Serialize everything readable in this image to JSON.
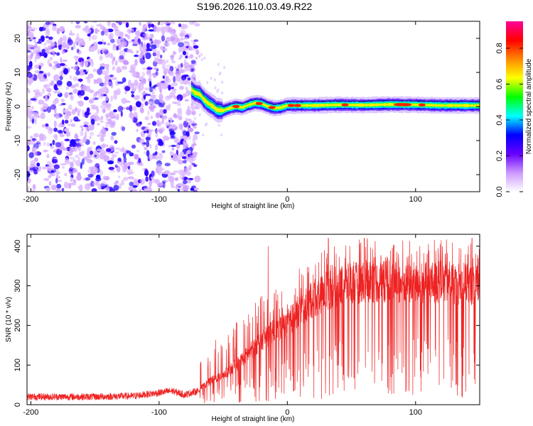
{
  "title": "S196.2026.110.03.49.R22",
  "chart_data": [
    {
      "type": "heatmap",
      "name": "spectrogram",
      "xlabel": "Height of straight line (km)",
      "ylabel": "Frequency (Hz)",
      "xlim": [
        -203,
        150
      ],
      "ylim": [
        -25,
        25
      ],
      "xticks": [
        -200,
        -100,
        0,
        100
      ],
      "yticks": [
        -20,
        -10,
        0,
        10,
        20
      ],
      "colorbar": {
        "label": "Normalized spectral amplitude",
        "range": [
          0,
          0.95
        ],
        "ticks": [
          0.0,
          0.2,
          0.4,
          0.6,
          0.8
        ],
        "tick_labels": [
          "0.0",
          "0.2",
          "0.4",
          "0.6",
          "0.8"
        ],
        "colormap": [
          "#ffffff",
          "#cc99ff",
          "#6600ff",
          "#0000ff",
          "#00ffff",
          "#00ff00",
          "#ffff00",
          "#ff8800",
          "#ff0000",
          "#ff0099"
        ]
      },
      "noise_region_x": [
        -203,
        -73
      ],
      "trace": [
        {
          "x": -75,
          "y": 5.0
        },
        {
          "x": -72,
          "y": 4.0
        },
        {
          "x": -68,
          "y": 3.5
        },
        {
          "x": -65,
          "y": 2.0
        },
        {
          "x": -62,
          "y": 1.0
        },
        {
          "x": -58,
          "y": 0.0
        },
        {
          "x": -55,
          "y": -1.0
        },
        {
          "x": -50,
          "y": -1.2
        },
        {
          "x": -45,
          "y": -0.5
        },
        {
          "x": -40,
          "y": 0.0
        },
        {
          "x": -35,
          "y": -0.3
        },
        {
          "x": -30,
          "y": 0.5
        },
        {
          "x": -25,
          "y": 1.0
        },
        {
          "x": -20,
          "y": 0.8
        },
        {
          "x": -15,
          "y": 0.0
        },
        {
          "x": -10,
          "y": -0.5
        },
        {
          "x": -5,
          "y": -0.3
        },
        {
          "x": 0,
          "y": 0.3
        },
        {
          "x": 20,
          "y": 0.3
        },
        {
          "x": 40,
          "y": 0.5
        },
        {
          "x": 60,
          "y": 0.4
        },
        {
          "x": 80,
          "y": 0.6
        },
        {
          "x": 100,
          "y": 0.5
        },
        {
          "x": 120,
          "y": 0.3
        },
        {
          "x": 150,
          "y": 0.3
        }
      ]
    },
    {
      "type": "line",
      "name": "snr",
      "xlabel": "Height of straight line (km)",
      "ylabel": "SNR (10 * v/v)",
      "xlim": [
        -203,
        150
      ],
      "ylim": [
        0,
        430
      ],
      "xticks": [
        -200,
        -100,
        0,
        100
      ],
      "yticks": [
        0,
        100,
        200,
        300,
        400
      ],
      "line_color": "#ee2222",
      "envelope": [
        {
          "x": -203,
          "y": 20
        },
        {
          "x": -150,
          "y": 20
        },
        {
          "x": -120,
          "y": 22
        },
        {
          "x": -100,
          "y": 30
        },
        {
          "x": -90,
          "y": 35
        },
        {
          "x": -80,
          "y": 25
        },
        {
          "x": -70,
          "y": 35
        },
        {
          "x": -60,
          "y": 60
        },
        {
          "x": -50,
          "y": 75
        },
        {
          "x": -40,
          "y": 100
        },
        {
          "x": -30,
          "y": 130
        },
        {
          "x": -20,
          "y": 165
        },
        {
          "x": -10,
          "y": 185
        },
        {
          "x": 0,
          "y": 205
        },
        {
          "x": 10,
          "y": 240
        },
        {
          "x": 20,
          "y": 265
        },
        {
          "x": 30,
          "y": 285
        },
        {
          "x": 40,
          "y": 300
        },
        {
          "x": 60,
          "y": 310
        },
        {
          "x": 80,
          "y": 310
        },
        {
          "x": 100,
          "y": 305
        },
        {
          "x": 120,
          "y": 310
        },
        {
          "x": 150,
          "y": 300
        }
      ],
      "spikes": [
        {
          "x": -15,
          "y": 400
        },
        {
          "x": 32,
          "y": 420
        },
        {
          "x": 60,
          "y": 420
        },
        {
          "x": 120,
          "y": 415
        },
        {
          "x": 144,
          "y": 420
        }
      ]
    }
  ]
}
